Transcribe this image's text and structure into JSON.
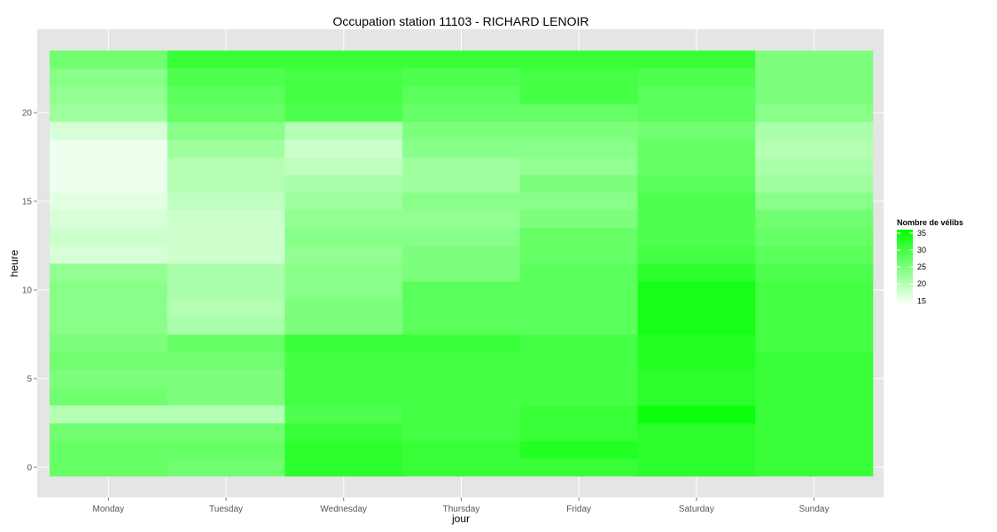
{
  "chart_data": {
    "type": "heatmap",
    "title": "Occupation station 11103 - RICHARD LENOIR",
    "xlabel": "jour",
    "ylabel": "heure",
    "x_categories": [
      "Monday",
      "Tuesday",
      "Wednesday",
      "Thursday",
      "Friday",
      "Saturday",
      "Sunday"
    ],
    "y_ticks": [
      0,
      5,
      10,
      15,
      20
    ],
    "y_range": [
      -0.5,
      23.5
    ],
    "grid": true,
    "panel_background": "#E5E5E5",
    "color_scale": {
      "low": "#FFFFFF",
      "high": "#00FF00",
      "min": 13.5,
      "max": 36
    },
    "legend": {
      "title": "Nombre de vélibs",
      "position": "right",
      "breaks": [
        35,
        30,
        25,
        20,
        15
      ]
    },
    "hours": [
      0,
      1,
      2,
      3,
      4,
      5,
      6,
      7,
      8,
      9,
      10,
      11,
      12,
      13,
      14,
      15,
      16,
      17,
      18,
      19,
      20,
      21,
      22,
      23
    ],
    "values": {
      "Monday": [
        27,
        27,
        26,
        20,
        26,
        25,
        26,
        25,
        24,
        24,
        24,
        23,
        17,
        18,
        17,
        16,
        15,
        15,
        15,
        17,
        22,
        23,
        24,
        26
      ],
      "Tuesday": [
        26,
        27,
        26,
        20,
        25,
        25,
        26,
        27,
        21,
        20,
        21,
        21,
        18,
        18,
        18,
        19,
        20,
        20,
        22,
        24,
        27,
        28,
        29,
        31
      ],
      "Wednesday": [
        32,
        32,
        31,
        29,
        30,
        30,
        30,
        31,
        25,
        25,
        24,
        24,
        23,
        24,
        23,
        22,
        21,
        19,
        18,
        20,
        29,
        30,
        30,
        31
      ],
      "Thursday": [
        31,
        31,
        30,
        30,
        30,
        30,
        30,
        31,
        28,
        28,
        28,
        25,
        25,
        24,
        23,
        24,
        22,
        22,
        24,
        25,
        27,
        28,
        29,
        31
      ],
      "Friday": [
        31,
        33,
        31,
        31,
        30,
        30,
        30,
        30,
        28,
        28,
        28,
        28,
        27,
        27,
        25,
        24,
        25,
        23,
        24,
        25,
        27,
        30,
        30,
        31
      ],
      "Saturday": [
        32,
        32,
        32,
        35,
        32,
        32,
        33,
        33,
        34,
        34,
        34,
        32,
        30,
        29,
        29,
        29,
        28,
        27,
        27,
        26,
        28,
        28,
        29,
        31
      ],
      "Sunday": [
        31,
        31,
        31,
        31,
        31,
        31,
        31,
        30,
        30,
        30,
        30,
        29,
        28,
        27,
        26,
        24,
        22,
        21,
        20,
        21,
        24,
        25,
        25,
        25
      ]
    }
  }
}
